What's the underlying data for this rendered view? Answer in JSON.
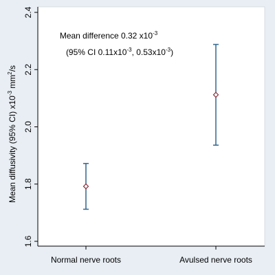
{
  "chart_data": {
    "type": "errorbar",
    "title": "",
    "ylabel": {
      "prefix": "Mean diffusivity (95% CI) x10",
      "exp1": "-3",
      "mid": " mm",
      "exp2": "2",
      "suffix": "/s"
    },
    "xlabel": "",
    "ylim": [
      1.6,
      2.4
    ],
    "yticks": [
      1.6,
      1.8,
      2.0,
      2.2,
      2.4
    ],
    "ytick_labels": [
      "1.6",
      "1.8",
      "2.0",
      "2.2",
      "2.4"
    ],
    "categories": [
      "Normal nerve roots",
      "Avulsed nerve roots"
    ],
    "points": [
      {
        "category": "Normal nerve roots",
        "mean": 1.792,
        "lower": 1.712,
        "upper": 1.872
      },
      {
        "category": "Avulsed nerve roots",
        "mean": 2.112,
        "lower": 1.936,
        "upper": 2.288
      }
    ],
    "annotation": {
      "line1_text": "Mean difference 0.32 x10",
      "line1_exp": "-3",
      "line2_a": "(95% CI 0.11x10",
      "line2_a_exp": "-3",
      "line2_b": ", 0.53x10",
      "line2_b_exp": "-3",
      "line2_c": ")"
    },
    "grid": false,
    "legend": "none"
  },
  "colors": {
    "outer_background": "#e8eef4",
    "plot_background": "#ffffff",
    "errorbar": "#3b6e94",
    "marker": "#8b2e3a",
    "axis": "#000000",
    "text": "#000000"
  }
}
